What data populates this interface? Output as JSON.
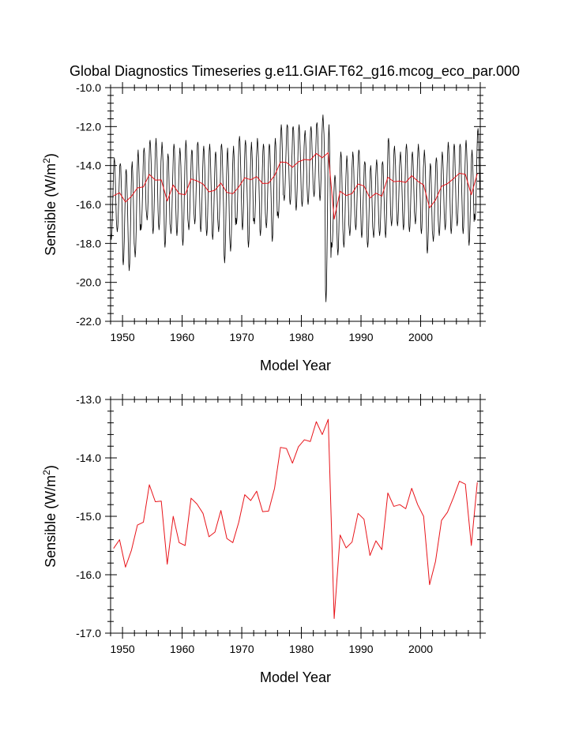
{
  "title": "Global Diagnostics Timeseries g.e11.GIAF.T62_g16.mcog_eco_par.000",
  "colors": {
    "monthly_series": "#000000",
    "annual_series": "#e8141a",
    "axis": "#000000"
  },
  "chart_data": [
    {
      "type": "line",
      "title": "Global Diagnostics Timeseries g.e11.GIAF.T62_g16.mcog_eco_par.000",
      "xlabel": "Model Year",
      "ylabel_main": "Sensible (W/m",
      "ylabel_sup": "2",
      "ylabel_end": ")",
      "xlim": [
        1948,
        2010
      ],
      "ylim": [
        -22.0,
        -10.0
      ],
      "xticks": [
        1950,
        1960,
        1970,
        1980,
        1990,
        2000
      ],
      "xtick_labels": [
        "1950",
        "1960",
        "1970",
        "1980",
        "1990",
        "2000"
      ],
      "yticks": [
        -22,
        -20,
        -18,
        -16,
        -14,
        -12,
        -10
      ],
      "ytick_labels": [
        "-22.0",
        "-20.0",
        "-18.0",
        "-16.0",
        "-14.0",
        "-12.0",
        "-10.0"
      ],
      "grid": false,
      "series": [
        {
          "kind": "monthly",
          "x_start": 1948.04,
          "step": 0.0833333,
          "annual_peak": [
            -13.6,
            -13.9,
            -14.2,
            -13.8,
            -13.2,
            -13.1,
            -12.7,
            -12.6,
            -12.8,
            -13.4,
            -12.9,
            -13.1,
            -12.7,
            -13.2,
            -12.8,
            -13.0,
            -12.9,
            -13.3,
            -12.9,
            -13.1,
            -13.0,
            -12.5,
            -12.7,
            -12.8,
            -12.6,
            -12.9,
            -12.9,
            -12.6,
            -11.9,
            -11.9,
            -12.0,
            -11.9,
            -12.2,
            -12.0,
            -11.8,
            -11.4,
            -11.9,
            -14.5,
            -13.3,
            -13.5,
            -13.3,
            -13.2,
            -13.8,
            -14.0,
            -13.7,
            -13.8,
            -12.6,
            -13.0,
            -13.3,
            -12.9,
            -13.3,
            -12.9,
            -13.2,
            -13.9,
            -13.6,
            -13.3,
            -12.8,
            -12.9,
            -12.9,
            -12.7,
            -13.2,
            -12.1
          ],
          "annual_trough": [
            -17.8,
            -17.4,
            -19.1,
            -19.4,
            -18.7,
            -17.3,
            -16.8,
            -17.5,
            -17.3,
            -18.2,
            -17.5,
            -17.6,
            -18.1,
            -17.3,
            -17.0,
            -17.4,
            -17.6,
            -17.8,
            -17.4,
            -19.0,
            -18.4,
            -17.0,
            -17.3,
            -18.2,
            -17.0,
            -17.6,
            -17.2,
            -17.9,
            -16.7,
            -15.8,
            -16.0,
            -16.3,
            -16.1,
            -16.0,
            -15.6,
            -15.8,
            -21.0,
            -18.2,
            -18.6,
            -18.2,
            -17.6,
            -17.3,
            -17.7,
            -18.2,
            -17.7,
            -17.6,
            -17.7,
            -17.1,
            -17.1,
            -17.3,
            -17.4,
            -17.0,
            -17.5,
            -18.5,
            -17.9,
            -17.6,
            -17.3,
            -17.5,
            -17.1,
            -17.5,
            -18.1,
            -16.8
          ]
        },
        {
          "kind": "annual",
          "x": [
            1948.5,
            1949.5,
            1950.5,
            1951.5,
            1952.5,
            1953.5,
            1954.5,
            1955.5,
            1956.5,
            1957.5,
            1958.5,
            1959.5,
            1960.5,
            1961.5,
            1962.5,
            1963.5,
            1964.5,
            1965.5,
            1966.5,
            1967.5,
            1968.5,
            1969.5,
            1970.5,
            1971.5,
            1972.5,
            1973.5,
            1974.5,
            1975.5,
            1976.5,
            1977.5,
            1978.5,
            1979.5,
            1980.5,
            1981.5,
            1982.5,
            1983.5,
            1984.5,
            1985.5,
            1986.5,
            1987.5,
            1988.5,
            1989.5,
            1990.5,
            1991.5,
            1992.5,
            1993.5,
            1994.5,
            1995.5,
            1996.5,
            1997.5,
            1998.5,
            1999.5,
            2000.5,
            2001.5,
            2002.5,
            2003.5,
            2004.5,
            2005.5,
            2006.5,
            2007.5,
            2008.5,
            2009.5
          ],
          "y": [
            -15.55,
            -15.4,
            -15.87,
            -15.58,
            -15.15,
            -15.1,
            -14.46,
            -14.75,
            -14.74,
            -15.82,
            -15.0,
            -15.45,
            -15.5,
            -14.69,
            -14.79,
            -14.95,
            -15.35,
            -15.27,
            -14.9,
            -15.38,
            -15.45,
            -15.1,
            -14.63,
            -14.73,
            -14.57,
            -14.92,
            -14.91,
            -14.52,
            -13.82,
            -13.84,
            -14.09,
            -13.81,
            -13.69,
            -13.72,
            -13.38,
            -13.6,
            -13.34,
            -16.75,
            -15.32,
            -15.54,
            -15.44,
            -14.95,
            -15.05,
            -15.67,
            -15.42,
            -15.57,
            -14.6,
            -14.83,
            -14.8,
            -14.87,
            -14.52,
            -14.8,
            -15.0,
            -16.17,
            -15.77,
            -15.07,
            -14.93,
            -14.68,
            -14.4,
            -14.45,
            -15.5,
            -14.42
          ]
        }
      ]
    },
    {
      "type": "line",
      "xlabel": "Model Year",
      "ylabel_main": "Sensible (W/m",
      "ylabel_sup": "2",
      "ylabel_end": ")",
      "xlim": [
        1948,
        2010
      ],
      "ylim": [
        -17.0,
        -13.0
      ],
      "xticks": [
        1950,
        1960,
        1970,
        1980,
        1990,
        2000
      ],
      "xtick_labels": [
        "1950",
        "1960",
        "1970",
        "1980",
        "1990",
        "2000"
      ],
      "yticks": [
        -17,
        -16,
        -15,
        -14,
        -13
      ],
      "ytick_labels": [
        "-17.0",
        "-16.0",
        "-15.0",
        "-14.0",
        "-13.0"
      ],
      "grid": false,
      "series": [
        {
          "kind": "annual",
          "x": [
            1948.5,
            1949.5,
            1950.5,
            1951.5,
            1952.5,
            1953.5,
            1954.5,
            1955.5,
            1956.5,
            1957.5,
            1958.5,
            1959.5,
            1960.5,
            1961.5,
            1962.5,
            1963.5,
            1964.5,
            1965.5,
            1966.5,
            1967.5,
            1968.5,
            1969.5,
            1970.5,
            1971.5,
            1972.5,
            1973.5,
            1974.5,
            1975.5,
            1976.5,
            1977.5,
            1978.5,
            1979.5,
            1980.5,
            1981.5,
            1982.5,
            1983.5,
            1984.5,
            1985.5,
            1986.5,
            1987.5,
            1988.5,
            1989.5,
            1990.5,
            1991.5,
            1992.5,
            1993.5,
            1994.5,
            1995.5,
            1996.5,
            1997.5,
            1998.5,
            1999.5,
            2000.5,
            2001.5,
            2002.5,
            2003.5,
            2004.5,
            2005.5,
            2006.5,
            2007.5,
            2008.5,
            2009.5
          ],
          "y": [
            -15.55,
            -15.4,
            -15.87,
            -15.58,
            -15.15,
            -15.1,
            -14.46,
            -14.75,
            -14.74,
            -15.82,
            -15.0,
            -15.45,
            -15.5,
            -14.69,
            -14.79,
            -14.95,
            -15.35,
            -15.27,
            -14.9,
            -15.38,
            -15.45,
            -15.1,
            -14.63,
            -14.73,
            -14.57,
            -14.92,
            -14.91,
            -14.52,
            -13.82,
            -13.84,
            -14.09,
            -13.81,
            -13.69,
            -13.72,
            -13.38,
            -13.6,
            -13.34,
            -16.75,
            -15.32,
            -15.54,
            -15.44,
            -14.95,
            -15.05,
            -15.67,
            -15.42,
            -15.57,
            -14.6,
            -14.83,
            -14.8,
            -14.87,
            -14.52,
            -14.8,
            -15.0,
            -16.17,
            -15.77,
            -15.07,
            -14.93,
            -14.68,
            -14.4,
            -14.45,
            -15.5,
            -14.42
          ]
        }
      ]
    }
  ]
}
